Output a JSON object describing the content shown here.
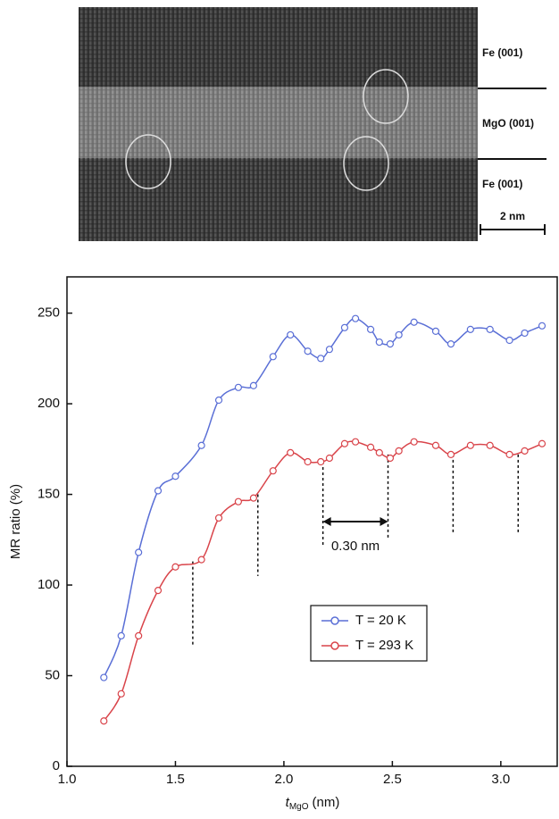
{
  "image": {
    "labels": [
      "Fe (001)",
      "MgO (001)",
      "Fe (001)"
    ],
    "scale_bar": "2 nm"
  },
  "chart_data": {
    "type": "line",
    "y_label": "MR ratio (%)",
    "x_label": {
      "symbol": "t",
      "subscript": "MgO",
      "unit": "(nm)"
    },
    "x": [
      1.17,
      1.25,
      1.33,
      1.42,
      1.5,
      1.62,
      1.7,
      1.79,
      1.86,
      1.95,
      2.03,
      2.11,
      2.17,
      2.21,
      2.28,
      2.33,
      2.4,
      2.44,
      2.49,
      2.53,
      2.6,
      2.7,
      2.77,
      2.86,
      2.95,
      3.04,
      3.11,
      3.19
    ],
    "series": [
      {
        "name": "T = 20 K",
        "color": "#5a6fd6",
        "values": [
          49,
          72,
          118,
          152,
          160,
          177,
          202,
          209,
          210,
          226,
          238,
          229,
          225,
          230,
          242,
          247,
          241,
          234,
          233,
          238,
          245,
          240,
          233,
          241,
          241,
          235,
          239,
          243
        ]
      },
      {
        "name": "T = 293 K",
        "color": "#d9444a",
        "values": [
          25,
          40,
          72,
          97,
          110,
          114,
          137,
          146,
          148,
          163,
          173,
          168,
          168,
          170,
          178,
          179,
          176,
          173,
          170,
          174,
          179,
          177,
          172,
          177,
          177,
          172,
          174,
          178
        ]
      }
    ],
    "dashed_lines": [
      {
        "x": 1.58,
        "top": 113,
        "bottom": 67
      },
      {
        "x": 1.88,
        "top": 150,
        "bottom": 105
      },
      {
        "x": 2.18,
        "top": 168,
        "bottom": 122
      },
      {
        "x": 2.48,
        "top": 172,
        "bottom": 125
      },
      {
        "x": 2.78,
        "top": 172,
        "bottom": 128
      },
      {
        "x": 3.08,
        "top": 172,
        "bottom": 128
      }
    ],
    "annotation": {
      "text": "0.30 nm",
      "x1": 2.18,
      "x2": 2.48,
      "y": 135
    },
    "xlim": [
      1.0,
      3.26
    ],
    "ylim": [
      0,
      270
    ],
    "xticks": [
      {
        "value": 1,
        "label": "1.0"
      },
      1.5,
      {
        "value": 2,
        "label": "2.0"
      },
      2.5,
      {
        "value": 3,
        "label": "3.0"
      }
    ],
    "yticks": [
      0,
      50,
      100,
      150,
      200,
      250
    ]
  }
}
